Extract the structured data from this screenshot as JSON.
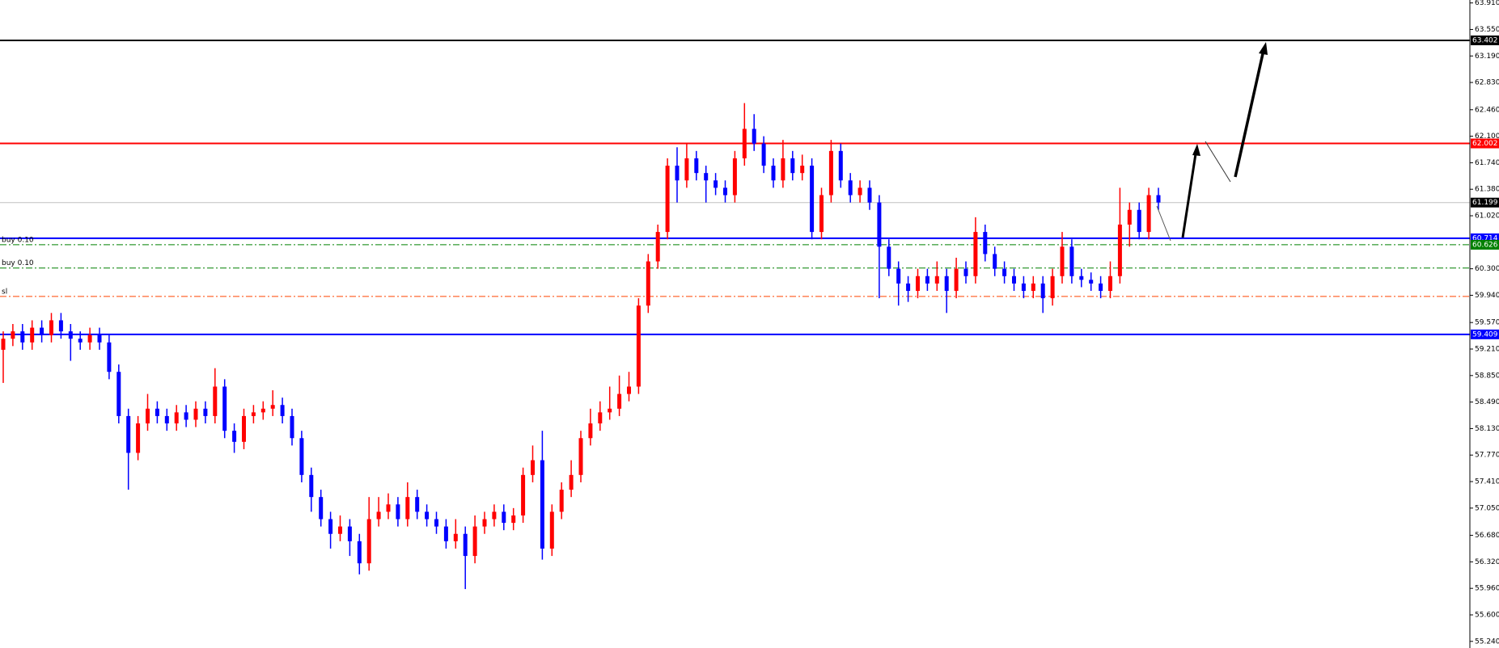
{
  "chart_data": {
    "type": "candlestick",
    "up_color": "#ff0000",
    "down_color": "#0000ff",
    "ylim": [
      55.15,
      63.95
    ],
    "yticks": [
      {
        "value": 63.91,
        "label": "63.910"
      },
      {
        "value": 63.55,
        "label": "63.550"
      },
      {
        "value": 63.19,
        "label": "63.190"
      },
      {
        "value": 62.83,
        "label": "62.830"
      },
      {
        "value": 62.46,
        "label": "62.460"
      },
      {
        "value": 62.1,
        "label": "62.100"
      },
      {
        "value": 61.74,
        "label": "61.740"
      },
      {
        "value": 61.38,
        "label": "61.380"
      },
      {
        "value": 61.02,
        "label": "61.020"
      },
      {
        "value": 60.3,
        "label": "60.300"
      },
      {
        "value": 59.94,
        "label": "59.940"
      },
      {
        "value": 59.57,
        "label": "59.570"
      },
      {
        "value": 59.21,
        "label": "59.210"
      },
      {
        "value": 58.85,
        "label": "58.850"
      },
      {
        "value": 58.49,
        "label": "58.490"
      },
      {
        "value": 58.13,
        "label": "58.130"
      },
      {
        "value": 57.77,
        "label": "57.770"
      },
      {
        "value": 57.41,
        "label": "57.410"
      },
      {
        "value": 57.05,
        "label": "57.050"
      },
      {
        "value": 56.68,
        "label": "56.680"
      },
      {
        "value": 56.32,
        "label": "56.320"
      },
      {
        "value": 55.96,
        "label": "55.960"
      },
      {
        "value": 55.6,
        "label": "55.600"
      },
      {
        "value": 55.24,
        "label": "55.240"
      }
    ],
    "levels": [
      {
        "value": 63.402,
        "color": "#000000",
        "style": "solid",
        "tag": true
      },
      {
        "value": 62.002,
        "color": "#ff0000",
        "style": "solid",
        "tag": true
      },
      {
        "value": 61.199,
        "color": "#c0c0c0",
        "style": "solid",
        "tag": true,
        "tag_color": "#000000"
      },
      {
        "value": 60.714,
        "color": "#0000ff",
        "style": "solid",
        "tag": true
      },
      {
        "value": 60.626,
        "color": "#008000",
        "style": "dashdot",
        "tag": true,
        "label": "buy 0.10"
      },
      {
        "value": 60.31,
        "color": "#008000",
        "style": "dashdot",
        "tag": false,
        "label": "buy 0.10"
      },
      {
        "value": 59.925,
        "color": "#ff4500",
        "style": "dashdot",
        "tag": false,
        "label": "sl"
      },
      {
        "value": 59.409,
        "color": "#0000ff",
        "style": "solid",
        "tag": true
      }
    ],
    "open": [
      59.2,
      59.35,
      59.45,
      59.3,
      59.5,
      59.4,
      59.6,
      59.45,
      59.35,
      59.3,
      59.4,
      59.3,
      58.9,
      58.3,
      57.8,
      58.2,
      58.4,
      58.3,
      58.2,
      58.35,
      58.25,
      58.4,
      58.3,
      58.7,
      58.1,
      57.95,
      58.3,
      58.35,
      58.4,
      58.45,
      58.3,
      58.0,
      57.5,
      57.2,
      56.9,
      56.7,
      56.8,
      56.6,
      56.3,
      56.9,
      57.0,
      57.1,
      56.9,
      57.2,
      57.0,
      56.9,
      56.8,
      56.6,
      56.7,
      56.4,
      56.8,
      56.9,
      57.0,
      56.85,
      56.95,
      57.5,
      57.7,
      56.5,
      57.0,
      57.3,
      57.5,
      58.0,
      58.2,
      58.35,
      58.4,
      58.6,
      58.7,
      59.8,
      60.4,
      60.8,
      61.7,
      61.5,
      61.8,
      61.6,
      61.5,
      61.4,
      61.3,
      61.8,
      62.2,
      62.0,
      61.7,
      61.5,
      61.8,
      61.6,
      61.7,
      60.8,
      61.3,
      61.9,
      61.5,
      61.3,
      61.4,
      61.2,
      60.6,
      60.3,
      60.1,
      60.0,
      60.2,
      60.1,
      60.2,
      60.0,
      60.3,
      60.2,
      60.8,
      60.5,
      60.3,
      60.2,
      60.1,
      60.0,
      60.1,
      59.9,
      60.2,
      60.6,
      60.2,
      60.15,
      60.1,
      60.0,
      60.2,
      60.9,
      61.1,
      60.8,
      61.3
    ],
    "high": [
      59.45,
      59.55,
      59.55,
      59.6,
      59.6,
      59.7,
      59.7,
      59.55,
      59.45,
      59.5,
      59.5,
      59.4,
      59.0,
      58.4,
      58.3,
      58.6,
      58.5,
      58.4,
      58.45,
      58.45,
      58.5,
      58.5,
      58.95,
      58.8,
      58.2,
      58.4,
      58.45,
      58.5,
      58.65,
      58.55,
      58.4,
      58.1,
      57.6,
      57.3,
      57.0,
      56.95,
      56.9,
      56.7,
      57.2,
      57.2,
      57.25,
      57.2,
      57.4,
      57.3,
      57.1,
      57.0,
      56.9,
      56.9,
      56.8,
      56.95,
      57.0,
      57.1,
      57.1,
      57.05,
      57.6,
      57.9,
      58.1,
      57.1,
      57.4,
      57.7,
      58.1,
      58.4,
      58.5,
      58.7,
      58.85,
      58.9,
      59.9,
      60.5,
      60.9,
      61.8,
      61.95,
      62.0,
      61.9,
      61.7,
      61.6,
      61.5,
      61.9,
      62.55,
      62.4,
      62.1,
      61.8,
      62.05,
      61.9,
      61.85,
      61.8,
      61.4,
      62.05,
      62.0,
      61.6,
      61.5,
      61.5,
      61.3,
      60.7,
      60.4,
      60.2,
      60.3,
      60.3,
      60.4,
      60.3,
      60.45,
      60.4,
      61.0,
      60.9,
      60.6,
      60.4,
      60.3,
      60.2,
      60.2,
      60.2,
      60.3,
      60.8,
      60.7,
      60.3,
      60.25,
      60.2,
      60.4,
      61.4,
      61.2,
      61.2,
      61.4,
      61.4
    ],
    "low": [
      58.75,
      59.25,
      59.2,
      59.2,
      59.3,
      59.3,
      59.35,
      59.05,
      59.2,
      59.2,
      59.2,
      58.8,
      58.2,
      57.3,
      57.7,
      58.1,
      58.2,
      58.1,
      58.1,
      58.15,
      58.15,
      58.2,
      58.2,
      58.0,
      57.8,
      57.85,
      58.2,
      58.25,
      58.3,
      58.2,
      57.9,
      57.4,
      57.0,
      56.8,
      56.5,
      56.6,
      56.4,
      56.15,
      56.2,
      56.8,
      56.9,
      56.8,
      56.8,
      56.9,
      56.8,
      56.7,
      56.5,
      56.5,
      55.95,
      56.3,
      56.7,
      56.8,
      56.75,
      56.75,
      56.85,
      57.4,
      56.35,
      56.4,
      56.9,
      57.2,
      57.4,
      57.9,
      58.1,
      58.25,
      58.3,
      58.5,
      58.6,
      59.7,
      60.3,
      60.7,
      61.2,
      61.4,
      61.5,
      61.2,
      61.3,
      61.2,
      61.2,
      61.7,
      61.9,
      61.6,
      61.4,
      61.4,
      61.5,
      61.5,
      60.7,
      60.7,
      61.2,
      61.4,
      61.2,
      61.2,
      61.1,
      59.9,
      60.2,
      59.8,
      59.85,
      59.9,
      60.0,
      60.0,
      59.7,
      59.9,
      60.1,
      60.1,
      60.4,
      60.2,
      60.1,
      60.0,
      59.9,
      59.9,
      59.7,
      59.8,
      60.1,
      60.1,
      60.05,
      60.0,
      59.9,
      59.9,
      60.1,
      60.6,
      60.7,
      60.7,
      61.1
    ],
    "close": [
      59.35,
      59.45,
      59.3,
      59.5,
      59.4,
      59.6,
      59.45,
      59.35,
      59.3,
      59.4,
      59.3,
      58.9,
      58.3,
      57.8,
      58.2,
      58.4,
      58.3,
      58.2,
      58.35,
      58.25,
      58.4,
      58.3,
      58.7,
      58.1,
      57.95,
      58.3,
      58.35,
      58.4,
      58.45,
      58.3,
      58.0,
      57.5,
      57.2,
      56.9,
      56.7,
      56.8,
      56.6,
      56.3,
      56.9,
      57.0,
      57.1,
      56.9,
      57.2,
      57.0,
      56.9,
      56.8,
      56.6,
      56.7,
      56.4,
      56.8,
      56.9,
      57.0,
      56.85,
      56.95,
      57.5,
      57.7,
      56.5,
      57.0,
      57.3,
      57.5,
      58.0,
      58.2,
      58.35,
      58.4,
      58.6,
      58.7,
      59.8,
      60.4,
      60.8,
      61.7,
      61.5,
      61.8,
      61.6,
      61.5,
      61.4,
      61.3,
      61.8,
      62.2,
      62.0,
      61.7,
      61.5,
      61.8,
      61.6,
      61.7,
      60.8,
      61.3,
      61.9,
      61.5,
      61.3,
      61.4,
      61.2,
      60.6,
      60.3,
      60.1,
      60.0,
      60.2,
      60.1,
      60.2,
      60.0,
      60.3,
      60.2,
      60.8,
      60.5,
      60.3,
      60.2,
      60.1,
      60.0,
      60.1,
      59.9,
      60.2,
      60.6,
      60.2,
      60.15,
      60.1,
      60.0,
      60.2,
      60.9,
      61.1,
      60.8,
      61.3,
      61.2
    ]
  }
}
